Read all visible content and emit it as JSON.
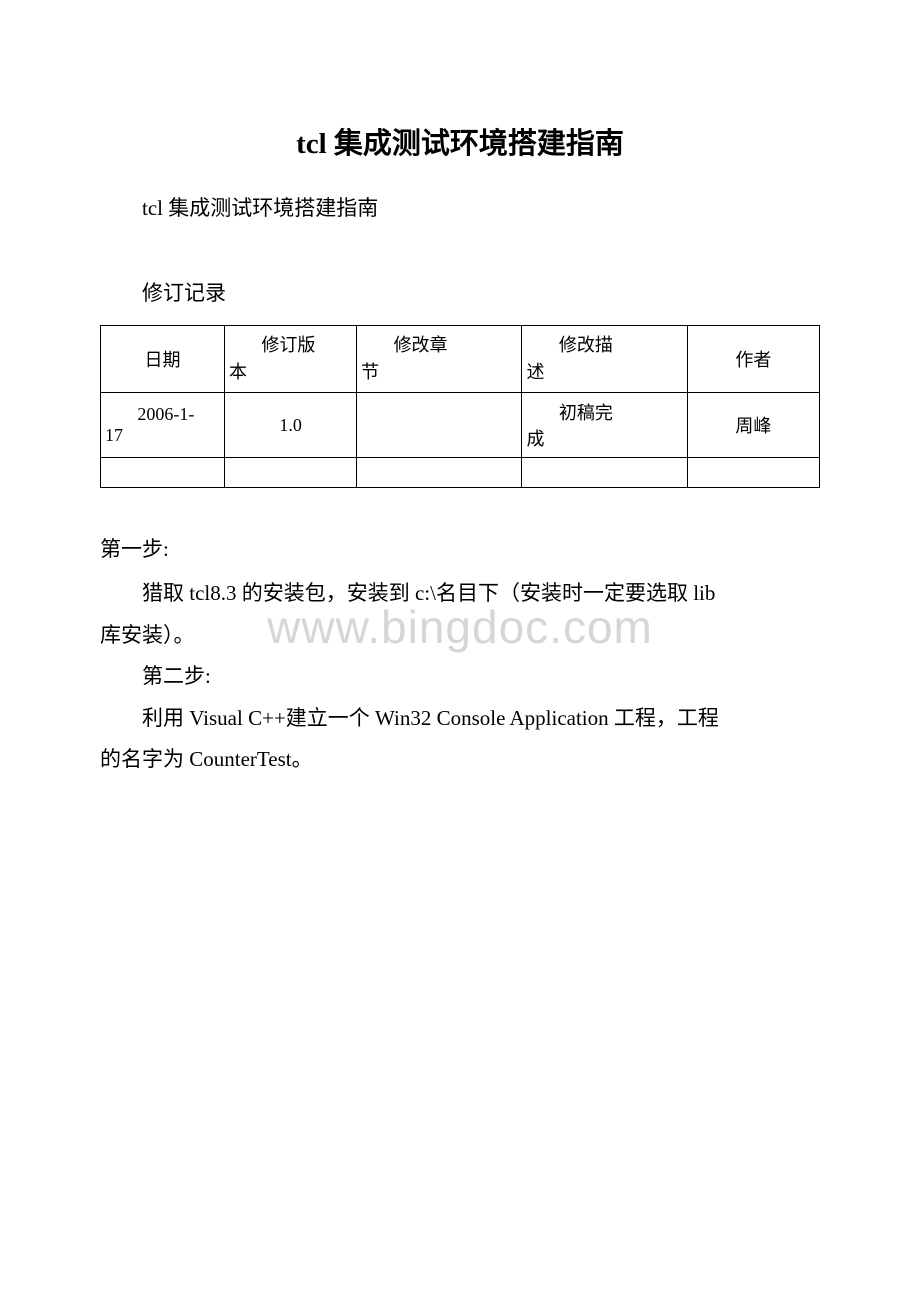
{
  "title": "tcl 集成测试环境搭建指南",
  "subtitle": "tcl 集成测试环境搭建指南",
  "revision_label": "修订记录",
  "table": {
    "headers": {
      "date": "日期",
      "version_l1": "修订版",
      "version_l2": "本",
      "chapter_l1": "修改章",
      "chapter_l2": "节",
      "desc_l1": "修改描",
      "desc_l2": "述",
      "author": "作者"
    },
    "row1": {
      "date_l1": "2006-1-",
      "date_l2": "17",
      "version": "1.0",
      "chapter": "",
      "desc_l1": "初稿完",
      "desc_l2": "成",
      "author": "周峰"
    }
  },
  "step1_heading": "第一步:",
  "step1_text1": "猎取 tcl8.3 的安装包，安装到 c:\\名目下（安装时一定要选取 lib",
  "step1_text2": "库安装）。",
  "step2_heading": "第二步:",
  "step2_text1": "利用 Visual C++建立一个 Win32 Console Application 工程，工程",
  "step2_text2": "的名字为 CounterTest。",
  "watermark": "www.bingdoc.com"
}
